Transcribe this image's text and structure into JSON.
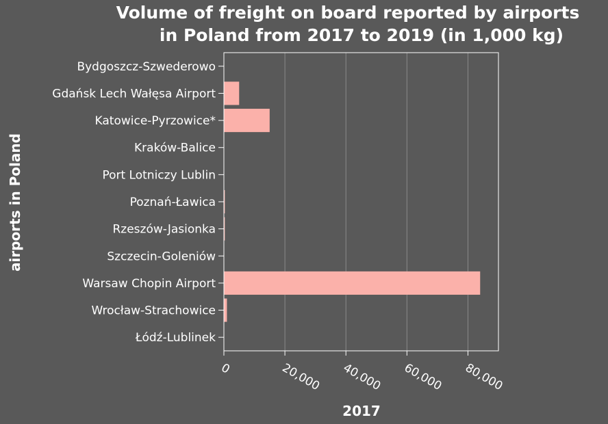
{
  "chart_data": {
    "type": "bar",
    "orientation": "horizontal",
    "title_lines": [
      "Volume of freight on board reported by airports",
      "in Poland from 2017 to 2019 (in 1,000 kg)"
    ],
    "xlabel": "2017",
    "ylabel": "airports in Poland",
    "categories": [
      "Bydgoszcz-Szwederowo",
      "Gdańsk Lech Wałęsa Airport",
      "Katowice-Pyrzowice*",
      "Kraków-Balice",
      "Port Lotniczy Lublin",
      "Poznań-Ławica",
      "Rzeszów-Jasionka",
      "Szczecin-Goleniów",
      "Warsaw Chopin Airport",
      "Wrocław-Strachowice",
      "Łódź-Lublinek"
    ],
    "values": [
      0,
      5000,
      15000,
      0,
      0,
      300,
      300,
      0,
      84000,
      1000,
      0
    ],
    "xlim": [
      0,
      90000
    ],
    "xticks": [
      0,
      20000,
      40000,
      60000,
      80000
    ],
    "xtick_labels": [
      "0",
      "20,000",
      "40,000",
      "60,000",
      "80,000"
    ],
    "grid": "vertical",
    "legend": "none",
    "colors": {
      "background": "#595959",
      "bar": "#fbb1aa",
      "grid": "#8a8a8a",
      "axis": "#ffffff",
      "text": "#ffffff"
    }
  }
}
